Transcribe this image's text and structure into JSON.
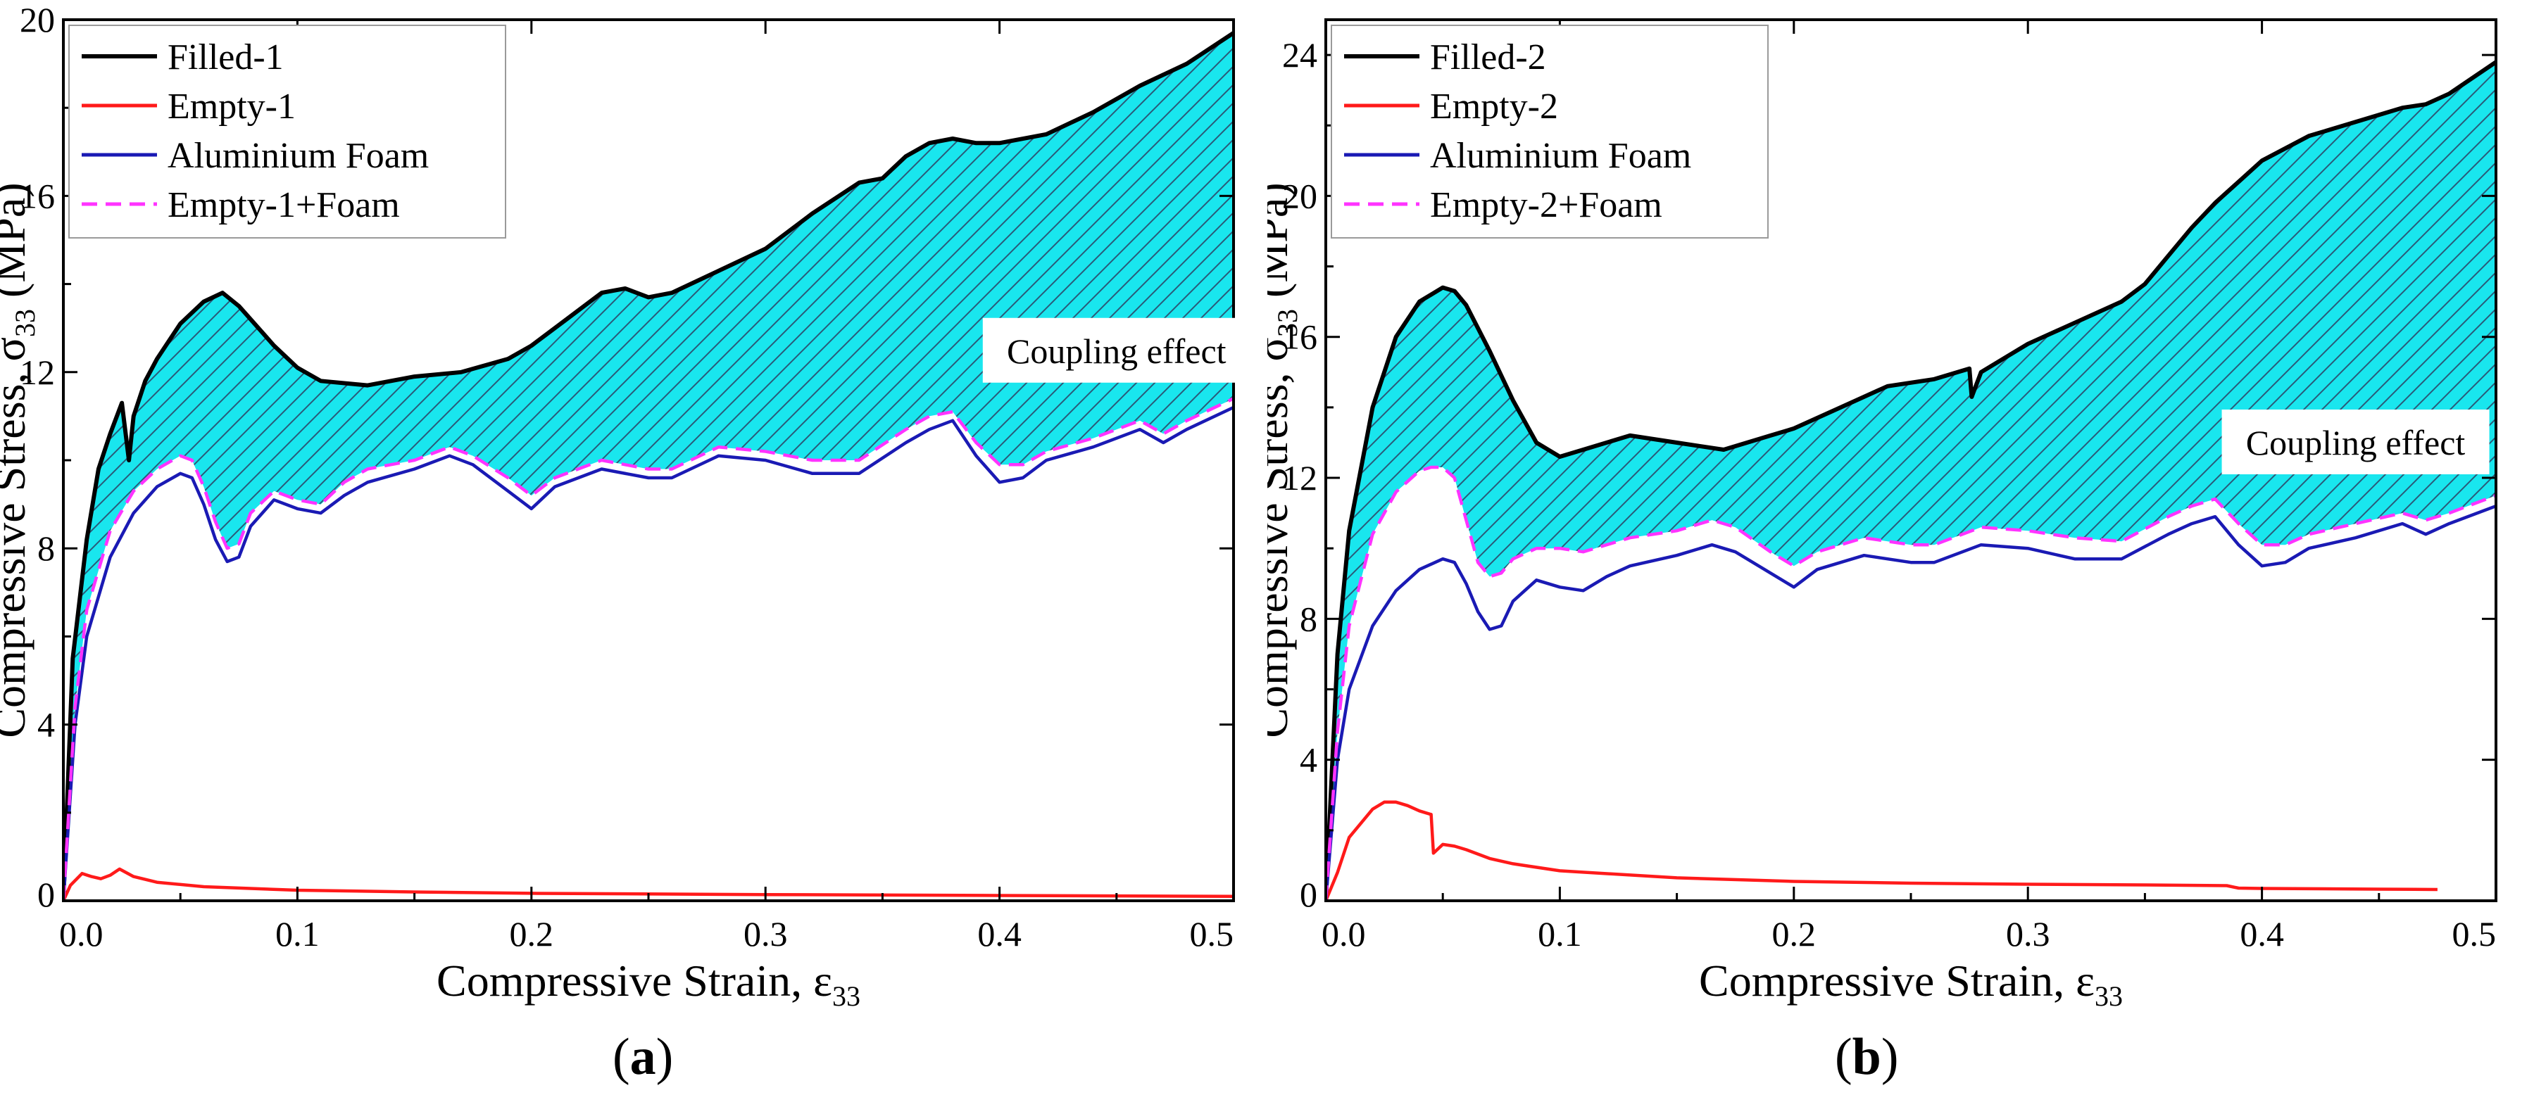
{
  "colors": {
    "filled": "#000000",
    "empty": "#ff1a1a",
    "foam": "#1a1ab4",
    "empty_plus_foam": "#ff33ff",
    "coupling_fill": "#19e6ee",
    "hatch": "#2a5a78"
  },
  "captions": [
    {
      "open": "(",
      "label": "a",
      "close": ")"
    },
    {
      "open": "(",
      "label": "b",
      "close": ")"
    }
  ],
  "chart_data": [
    {
      "type": "line",
      "panel": "a",
      "title": "",
      "xlabel": "Compressive Strain, ε",
      "xlabel_sub": "33",
      "ylabel": "Compressive Stress, σ",
      "ylabel_sub": "33",
      "ylabel_unit": " (MPa)",
      "xlim": [
        0,
        0.5
      ],
      "ylim": [
        0,
        20
      ],
      "xticks": [
        0,
        0.1,
        0.2,
        0.3,
        0.4,
        0.5
      ],
      "xtick_labels": [
        "0.0",
        "0.1",
        "0.2",
        "0.3",
        "0.4",
        "0.5"
      ],
      "yticks": [
        0,
        4,
        8,
        12,
        16,
        20
      ],
      "ytick_labels": [
        "0",
        "4",
        "8",
        "12",
        "16",
        "20"
      ],
      "grid": false,
      "legend_position": "top-left",
      "annotation": "Coupling effect",
      "annotation_at": [
        0.45,
        12.4
      ],
      "shaded_between": [
        "Filled-1",
        "Empty-1+Foam"
      ],
      "series": [
        {
          "name": "Filled-1",
          "style": "solid",
          "color_key": "filled",
          "x": [
            0,
            0.004,
            0.01,
            0.015,
            0.02,
            0.025,
            0.028,
            0.03,
            0.035,
            0.04,
            0.05,
            0.06,
            0.068,
            0.075,
            0.09,
            0.1,
            0.11,
            0.13,
            0.15,
            0.17,
            0.19,
            0.2,
            0.215,
            0.23,
            0.24,
            0.25,
            0.26,
            0.28,
            0.3,
            0.32,
            0.34,
            0.35,
            0.36,
            0.37,
            0.38,
            0.39,
            0.4,
            0.42,
            0.44,
            0.46,
            0.48,
            0.5
          ],
          "y": [
            0,
            5.5,
            8.2,
            9.8,
            10.6,
            11.3,
            10.0,
            11.0,
            11.8,
            12.3,
            13.1,
            13.6,
            13.8,
            13.5,
            12.6,
            12.1,
            11.8,
            11.7,
            11.9,
            12.0,
            12.3,
            12.6,
            13.2,
            13.8,
            13.9,
            13.7,
            13.8,
            14.3,
            14.8,
            15.6,
            16.3,
            16.4,
            16.9,
            17.2,
            17.3,
            17.2,
            17.2,
            17.4,
            17.9,
            18.5,
            19.0,
            19.7
          ]
        },
        {
          "name": "Empty-1",
          "style": "solid",
          "color_key": "empty",
          "x": [
            0,
            0.003,
            0.008,
            0.012,
            0.016,
            0.02,
            0.024,
            0.03,
            0.04,
            0.06,
            0.1,
            0.15,
            0.2,
            0.3,
            0.4,
            0.5
          ],
          "y": [
            0,
            0.35,
            0.62,
            0.55,
            0.5,
            0.58,
            0.72,
            0.55,
            0.42,
            0.32,
            0.24,
            0.2,
            0.17,
            0.14,
            0.12,
            0.1
          ]
        },
        {
          "name": "Aluminium Foam",
          "style": "solid",
          "color_key": "foam",
          "x": [
            0,
            0.005,
            0.01,
            0.02,
            0.03,
            0.04,
            0.05,
            0.055,
            0.06,
            0.065,
            0.07,
            0.075,
            0.08,
            0.09,
            0.1,
            0.11,
            0.12,
            0.13,
            0.15,
            0.165,
            0.175,
            0.19,
            0.2,
            0.21,
            0.23,
            0.25,
            0.26,
            0.28,
            0.3,
            0.32,
            0.34,
            0.36,
            0.37,
            0.38,
            0.39,
            0.4,
            0.41,
            0.42,
            0.44,
            0.46,
            0.47,
            0.48,
            0.5
          ],
          "y": [
            0,
            4.0,
            6.0,
            7.8,
            8.8,
            9.4,
            9.7,
            9.6,
            9.0,
            8.2,
            7.7,
            7.8,
            8.5,
            9.1,
            8.9,
            8.8,
            9.2,
            9.5,
            9.8,
            10.1,
            9.9,
            9.3,
            8.9,
            9.4,
            9.8,
            9.6,
            9.6,
            10.1,
            10.0,
            9.7,
            9.7,
            10.4,
            10.7,
            10.9,
            10.1,
            9.5,
            9.6,
            10.0,
            10.3,
            10.7,
            10.4,
            10.7,
            11.2
          ]
        },
        {
          "name": "Empty-1+Foam",
          "style": "dashed",
          "color_key": "empty_plus_foam",
          "x": [
            0,
            0.005,
            0.01,
            0.02,
            0.03,
            0.04,
            0.05,
            0.055,
            0.06,
            0.065,
            0.07,
            0.075,
            0.08,
            0.09,
            0.1,
            0.11,
            0.12,
            0.13,
            0.15,
            0.165,
            0.175,
            0.19,
            0.2,
            0.21,
            0.23,
            0.25,
            0.26,
            0.28,
            0.3,
            0.32,
            0.34,
            0.36,
            0.37,
            0.38,
            0.39,
            0.4,
            0.41,
            0.42,
            0.44,
            0.46,
            0.47,
            0.48,
            0.5
          ],
          "y": [
            0,
            4.4,
            6.6,
            8.4,
            9.3,
            9.8,
            10.1,
            10.0,
            9.4,
            8.6,
            8.0,
            8.1,
            8.8,
            9.3,
            9.1,
            9.0,
            9.5,
            9.8,
            10.0,
            10.3,
            10.1,
            9.6,
            9.2,
            9.6,
            10.0,
            9.8,
            9.8,
            10.3,
            10.2,
            10.0,
            10.0,
            10.7,
            11.0,
            11.1,
            10.4,
            9.9,
            9.9,
            10.2,
            10.5,
            10.9,
            10.6,
            10.9,
            11.4
          ]
        }
      ]
    },
    {
      "type": "line",
      "panel": "b",
      "title": "",
      "xlabel": "Compressive Strain, ε",
      "xlabel_sub": "33",
      "ylabel": "Compressive Stress, σ",
      "ylabel_sub": "33",
      "ylabel_unit": " (MPa)",
      "xlim": [
        0,
        0.5
      ],
      "ylim": [
        0,
        25
      ],
      "xticks": [
        0,
        0.1,
        0.2,
        0.3,
        0.4,
        0.5
      ],
      "xtick_labels": [
        "0.0",
        "0.1",
        "0.2",
        "0.3",
        "0.4",
        "0.5"
      ],
      "yticks": [
        0,
        4,
        8,
        12,
        16,
        20,
        24
      ],
      "ytick_labels": [
        "0",
        "4",
        "8",
        "12",
        "16",
        "20",
        "24"
      ],
      "grid": false,
      "legend_position": "top-left",
      "annotation": "Coupling effect",
      "annotation_at": [
        0.44,
        12.9
      ],
      "shaded_between": [
        "Filled-2",
        "Empty-2+Foam"
      ],
      "series": [
        {
          "name": "Filled-2",
          "style": "solid",
          "color_key": "filled",
          "x": [
            0,
            0.005,
            0.01,
            0.02,
            0.03,
            0.04,
            0.05,
            0.055,
            0.06,
            0.07,
            0.08,
            0.09,
            0.1,
            0.11,
            0.13,
            0.15,
            0.17,
            0.19,
            0.2,
            0.22,
            0.24,
            0.26,
            0.27,
            0.275,
            0.276,
            0.28,
            0.3,
            0.32,
            0.34,
            0.35,
            0.36,
            0.37,
            0.38,
            0.39,
            0.4,
            0.42,
            0.44,
            0.46,
            0.47,
            0.48,
            0.5
          ],
          "y": [
            0,
            7.0,
            10.5,
            14.0,
            16.0,
            17.0,
            17.4,
            17.3,
            16.9,
            15.6,
            14.2,
            13.0,
            12.6,
            12.8,
            13.2,
            13.0,
            12.8,
            13.2,
            13.4,
            14.0,
            14.6,
            14.8,
            15.0,
            15.1,
            14.3,
            15.0,
            15.8,
            16.4,
            17.0,
            17.5,
            18.3,
            19.1,
            19.8,
            20.4,
            21.0,
            21.7,
            22.1,
            22.5,
            22.6,
            22.9,
            23.8
          ]
        },
        {
          "name": "Empty-2",
          "style": "solid",
          "color_key": "empty",
          "x": [
            0,
            0.005,
            0.01,
            0.02,
            0.025,
            0.03,
            0.035,
            0.04,
            0.045,
            0.046,
            0.05,
            0.055,
            0.06,
            0.07,
            0.08,
            0.1,
            0.15,
            0.2,
            0.25,
            0.3,
            0.35,
            0.385,
            0.39,
            0.4,
            0.45,
            0.475
          ],
          "y": [
            0,
            0.8,
            1.8,
            2.6,
            2.8,
            2.8,
            2.7,
            2.55,
            2.45,
            1.35,
            1.6,
            1.55,
            1.45,
            1.2,
            1.05,
            0.85,
            0.65,
            0.55,
            0.5,
            0.47,
            0.45,
            0.43,
            0.36,
            0.35,
            0.33,
            0.32
          ]
        },
        {
          "name": "Aluminium Foam",
          "style": "solid",
          "color_key": "foam",
          "x": [
            0,
            0.005,
            0.01,
            0.02,
            0.03,
            0.04,
            0.05,
            0.055,
            0.06,
            0.065,
            0.07,
            0.075,
            0.08,
            0.09,
            0.1,
            0.11,
            0.12,
            0.13,
            0.15,
            0.165,
            0.175,
            0.19,
            0.2,
            0.21,
            0.23,
            0.25,
            0.26,
            0.28,
            0.3,
            0.32,
            0.34,
            0.36,
            0.37,
            0.38,
            0.39,
            0.4,
            0.41,
            0.42,
            0.44,
            0.46,
            0.47,
            0.48,
            0.5
          ],
          "y": [
            0,
            4.0,
            6.0,
            7.8,
            8.8,
            9.4,
            9.7,
            9.6,
            9.0,
            8.2,
            7.7,
            7.8,
            8.5,
            9.1,
            8.9,
            8.8,
            9.2,
            9.5,
            9.8,
            10.1,
            9.9,
            9.3,
            8.9,
            9.4,
            9.8,
            9.6,
            9.6,
            10.1,
            10.0,
            9.7,
            9.7,
            10.4,
            10.7,
            10.9,
            10.1,
            9.5,
            9.6,
            10.0,
            10.3,
            10.7,
            10.4,
            10.7,
            11.2
          ]
        },
        {
          "name": "Empty-2+Foam",
          "style": "dashed",
          "color_key": "empty_plus_foam",
          "x": [
            0,
            0.005,
            0.01,
            0.02,
            0.03,
            0.04,
            0.045,
            0.05,
            0.055,
            0.06,
            0.065,
            0.07,
            0.075,
            0.08,
            0.09,
            0.1,
            0.11,
            0.12,
            0.13,
            0.15,
            0.165,
            0.175,
            0.19,
            0.2,
            0.21,
            0.23,
            0.25,
            0.26,
            0.28,
            0.3,
            0.32,
            0.34,
            0.36,
            0.37,
            0.38,
            0.39,
            0.4,
            0.41,
            0.42,
            0.44,
            0.46,
            0.47,
            0.48,
            0.5
          ],
          "y": [
            0,
            4.8,
            7.8,
            10.4,
            11.6,
            12.2,
            12.3,
            12.3,
            12.0,
            10.8,
            9.6,
            9.2,
            9.3,
            9.7,
            10.0,
            10.0,
            9.9,
            10.1,
            10.3,
            10.5,
            10.8,
            10.6,
            9.9,
            9.5,
            9.9,
            10.3,
            10.1,
            10.1,
            10.6,
            10.5,
            10.3,
            10.2,
            10.9,
            11.2,
            11.4,
            10.7,
            10.1,
            10.1,
            10.4,
            10.7,
            11.0,
            10.8,
            11.0,
            11.5
          ]
        }
      ]
    }
  ]
}
